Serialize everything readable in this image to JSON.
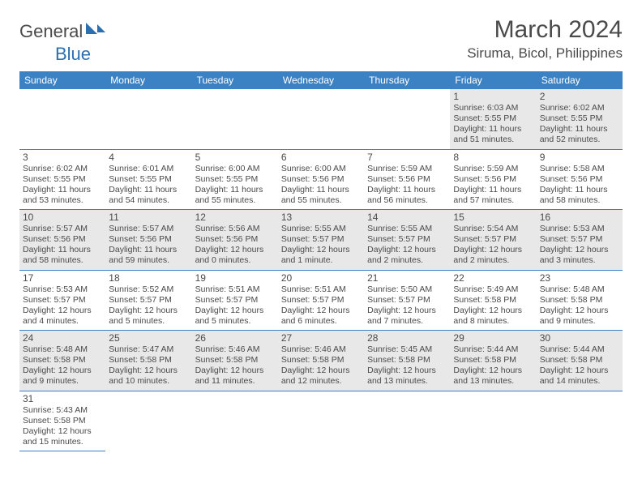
{
  "logo": {
    "text1": "General",
    "text2": "Blue"
  },
  "title": "March 2024",
  "location": "Siruma, Bicol, Philippines",
  "colors": {
    "header_bg": "#3b82c4",
    "header_text": "#ffffff",
    "text": "#4a4a4a",
    "alt_row_bg": "#e8e8e8",
    "row_bg": "#ffffff",
    "border": "#3b82c4"
  },
  "day_headers": [
    "Sunday",
    "Monday",
    "Tuesday",
    "Wednesday",
    "Thursday",
    "Friday",
    "Saturday"
  ],
  "weeks": [
    [
      null,
      null,
      null,
      null,
      null,
      {
        "n": "1",
        "sr": "Sunrise: 6:03 AM",
        "ss": "Sunset: 5:55 PM",
        "d1": "Daylight: 11 hours",
        "d2": "and 51 minutes."
      },
      {
        "n": "2",
        "sr": "Sunrise: 6:02 AM",
        "ss": "Sunset: 5:55 PM",
        "d1": "Daylight: 11 hours",
        "d2": "and 52 minutes."
      }
    ],
    [
      {
        "n": "3",
        "sr": "Sunrise: 6:02 AM",
        "ss": "Sunset: 5:55 PM",
        "d1": "Daylight: 11 hours",
        "d2": "and 53 minutes."
      },
      {
        "n": "4",
        "sr": "Sunrise: 6:01 AM",
        "ss": "Sunset: 5:55 PM",
        "d1": "Daylight: 11 hours",
        "d2": "and 54 minutes."
      },
      {
        "n": "5",
        "sr": "Sunrise: 6:00 AM",
        "ss": "Sunset: 5:55 PM",
        "d1": "Daylight: 11 hours",
        "d2": "and 55 minutes."
      },
      {
        "n": "6",
        "sr": "Sunrise: 6:00 AM",
        "ss": "Sunset: 5:56 PM",
        "d1": "Daylight: 11 hours",
        "d2": "and 55 minutes."
      },
      {
        "n": "7",
        "sr": "Sunrise: 5:59 AM",
        "ss": "Sunset: 5:56 PM",
        "d1": "Daylight: 11 hours",
        "d2": "and 56 minutes."
      },
      {
        "n": "8",
        "sr": "Sunrise: 5:59 AM",
        "ss": "Sunset: 5:56 PM",
        "d1": "Daylight: 11 hours",
        "d2": "and 57 minutes."
      },
      {
        "n": "9",
        "sr": "Sunrise: 5:58 AM",
        "ss": "Sunset: 5:56 PM",
        "d1": "Daylight: 11 hours",
        "d2": "and 58 minutes."
      }
    ],
    [
      {
        "n": "10",
        "sr": "Sunrise: 5:57 AM",
        "ss": "Sunset: 5:56 PM",
        "d1": "Daylight: 11 hours",
        "d2": "and 58 minutes."
      },
      {
        "n": "11",
        "sr": "Sunrise: 5:57 AM",
        "ss": "Sunset: 5:56 PM",
        "d1": "Daylight: 11 hours",
        "d2": "and 59 minutes."
      },
      {
        "n": "12",
        "sr": "Sunrise: 5:56 AM",
        "ss": "Sunset: 5:56 PM",
        "d1": "Daylight: 12 hours",
        "d2": "and 0 minutes."
      },
      {
        "n": "13",
        "sr": "Sunrise: 5:55 AM",
        "ss": "Sunset: 5:57 PM",
        "d1": "Daylight: 12 hours",
        "d2": "and 1 minute."
      },
      {
        "n": "14",
        "sr": "Sunrise: 5:55 AM",
        "ss": "Sunset: 5:57 PM",
        "d1": "Daylight: 12 hours",
        "d2": "and 2 minutes."
      },
      {
        "n": "15",
        "sr": "Sunrise: 5:54 AM",
        "ss": "Sunset: 5:57 PM",
        "d1": "Daylight: 12 hours",
        "d2": "and 2 minutes."
      },
      {
        "n": "16",
        "sr": "Sunrise: 5:53 AM",
        "ss": "Sunset: 5:57 PM",
        "d1": "Daylight: 12 hours",
        "d2": "and 3 minutes."
      }
    ],
    [
      {
        "n": "17",
        "sr": "Sunrise: 5:53 AM",
        "ss": "Sunset: 5:57 PM",
        "d1": "Daylight: 12 hours",
        "d2": "and 4 minutes."
      },
      {
        "n": "18",
        "sr": "Sunrise: 5:52 AM",
        "ss": "Sunset: 5:57 PM",
        "d1": "Daylight: 12 hours",
        "d2": "and 5 minutes."
      },
      {
        "n": "19",
        "sr": "Sunrise: 5:51 AM",
        "ss": "Sunset: 5:57 PM",
        "d1": "Daylight: 12 hours",
        "d2": "and 5 minutes."
      },
      {
        "n": "20",
        "sr": "Sunrise: 5:51 AM",
        "ss": "Sunset: 5:57 PM",
        "d1": "Daylight: 12 hours",
        "d2": "and 6 minutes."
      },
      {
        "n": "21",
        "sr": "Sunrise: 5:50 AM",
        "ss": "Sunset: 5:57 PM",
        "d1": "Daylight: 12 hours",
        "d2": "and 7 minutes."
      },
      {
        "n": "22",
        "sr": "Sunrise: 5:49 AM",
        "ss": "Sunset: 5:58 PM",
        "d1": "Daylight: 12 hours",
        "d2": "and 8 minutes."
      },
      {
        "n": "23",
        "sr": "Sunrise: 5:48 AM",
        "ss": "Sunset: 5:58 PM",
        "d1": "Daylight: 12 hours",
        "d2": "and 9 minutes."
      }
    ],
    [
      {
        "n": "24",
        "sr": "Sunrise: 5:48 AM",
        "ss": "Sunset: 5:58 PM",
        "d1": "Daylight: 12 hours",
        "d2": "and 9 minutes."
      },
      {
        "n": "25",
        "sr": "Sunrise: 5:47 AM",
        "ss": "Sunset: 5:58 PM",
        "d1": "Daylight: 12 hours",
        "d2": "and 10 minutes."
      },
      {
        "n": "26",
        "sr": "Sunrise: 5:46 AM",
        "ss": "Sunset: 5:58 PM",
        "d1": "Daylight: 12 hours",
        "d2": "and 11 minutes."
      },
      {
        "n": "27",
        "sr": "Sunrise: 5:46 AM",
        "ss": "Sunset: 5:58 PM",
        "d1": "Daylight: 12 hours",
        "d2": "and 12 minutes."
      },
      {
        "n": "28",
        "sr": "Sunrise: 5:45 AM",
        "ss": "Sunset: 5:58 PM",
        "d1": "Daylight: 12 hours",
        "d2": "and 13 minutes."
      },
      {
        "n": "29",
        "sr": "Sunrise: 5:44 AM",
        "ss": "Sunset: 5:58 PM",
        "d1": "Daylight: 12 hours",
        "d2": "and 13 minutes."
      },
      {
        "n": "30",
        "sr": "Sunrise: 5:44 AM",
        "ss": "Sunset: 5:58 PM",
        "d1": "Daylight: 12 hours",
        "d2": "and 14 minutes."
      }
    ],
    [
      {
        "n": "31",
        "sr": "Sunrise: 5:43 AM",
        "ss": "Sunset: 5:58 PM",
        "d1": "Daylight: 12 hours",
        "d2": "and 15 minutes."
      },
      null,
      null,
      null,
      null,
      null,
      null
    ]
  ]
}
